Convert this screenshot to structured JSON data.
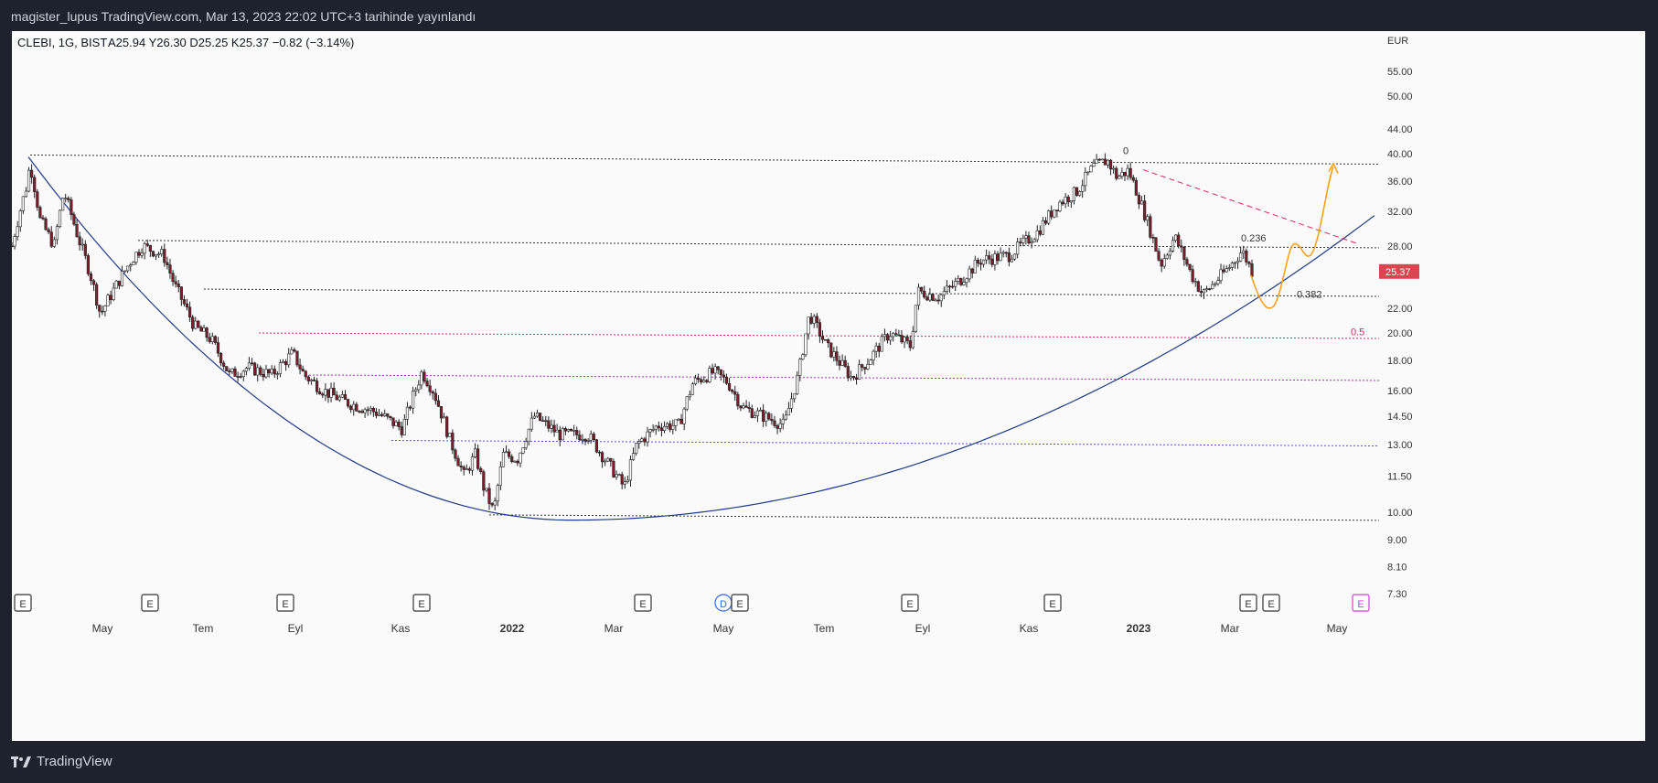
{
  "header": {
    "publish_text": "magister_lupus TradingView.com, Mar 13, 2023 22:02 UTC+3 tarihinde yayınlandı"
  },
  "legend": {
    "symbol_text": "CLEBI, 1G, BIST",
    "ohlc_text": "A25.94  Y26.30  D25.25  K25.37  −0.82 (−3.14%)"
  },
  "footer": {
    "brand": "TradingView"
  },
  "colors": {
    "bull": "#ffffff",
    "bear": "#7a1f2b",
    "wick": "#222222",
    "curve": "#1d3a8a",
    "price_badge": "#d9464f",
    "fib_red": "#e0245e",
    "fib_purple": "#b026c4",
    "fib_blue": "#5a4fcf",
    "arrow": "#f59e0b"
  },
  "chart_data": {
    "type": "candlestick",
    "currency": "EUR",
    "yscale": "log",
    "ylim": [
      7.3,
      60
    ],
    "last_price": "25.37",
    "y_ticks": [
      "55.00",
      "50.00",
      "44.00",
      "40.00",
      "36.00",
      "32.00",
      "28.00",
      "25.37",
      "22.00",
      "20.00",
      "18.00",
      "16.00",
      "14.50",
      "13.00",
      "11.50",
      "10.00",
      "9.00",
      "8.10",
      "7.30"
    ],
    "x_labels": [
      {
        "label": "May",
        "bold": false
      },
      {
        "label": "Tem",
        "bold": false
      },
      {
        "label": "Eyl",
        "bold": false
      },
      {
        "label": "Kas",
        "bold": false
      },
      {
        "label": "2022",
        "bold": true
      },
      {
        "label": "Mar",
        "bold": false
      },
      {
        "label": "May",
        "bold": false
      },
      {
        "label": "Tem",
        "bold": false
      },
      {
        "label": "Eyl",
        "bold": false
      },
      {
        "label": "Kas",
        "bold": false
      },
      {
        "label": "2023",
        "bold": true
      },
      {
        "label": "Mar",
        "bold": false
      },
      {
        "label": "May",
        "bold": false
      }
    ],
    "earnings_markers": [
      "E",
      "E",
      "E",
      "E",
      "E",
      "D",
      "E",
      "E",
      "E",
      "E",
      "E",
      "E"
    ],
    "fib_levels": [
      {
        "label": "0",
        "value": 39.1
      },
      {
        "label": "0.236",
        "value": 27.9
      },
      {
        "label": "0.382",
        "value": 22.6
      },
      {
        "label": "0.5",
        "value": 19.4
      }
    ],
    "horizontal_levels": [
      39.8,
      28.6,
      23.7,
      20.0,
      17.0,
      13.2,
      9.9
    ],
    "price_path": [
      {
        "t": 0.0,
        "p": 28.0
      },
      {
        "t": 0.01,
        "p": 35.0
      },
      {
        "t": 0.013,
        "p": 38.5
      },
      {
        "t": 0.02,
        "p": 31.0
      },
      {
        "t": 0.03,
        "p": 28.0
      },
      {
        "t": 0.037,
        "p": 34.5
      },
      {
        "t": 0.047,
        "p": 29.0
      },
      {
        "t": 0.056,
        "p": 25.0
      },
      {
        "t": 0.063,
        "p": 21.5
      },
      {
        "t": 0.072,
        "p": 23.5
      },
      {
        "t": 0.085,
        "p": 26.5
      },
      {
        "t": 0.093,
        "p": 28.0
      },
      {
        "t": 0.108,
        "p": 27.0
      },
      {
        "t": 0.116,
        "p": 24.0
      },
      {
        "t": 0.13,
        "p": 20.5
      },
      {
        "t": 0.142,
        "p": 19.5
      },
      {
        "t": 0.155,
        "p": 17.0
      },
      {
        "t": 0.168,
        "p": 17.5
      },
      {
        "t": 0.185,
        "p": 17.0
      },
      {
        "t": 0.2,
        "p": 18.5
      },
      {
        "t": 0.208,
        "p": 17.0
      },
      {
        "t": 0.222,
        "p": 16.0
      },
      {
        "t": 0.238,
        "p": 15.3
      },
      {
        "t": 0.26,
        "p": 14.7
      },
      {
        "t": 0.278,
        "p": 13.8
      },
      {
        "t": 0.292,
        "p": 17.2
      },
      {
        "t": 0.3,
        "p": 16.0
      },
      {
        "t": 0.312,
        "p": 13.2
      },
      {
        "t": 0.322,
        "p": 11.5
      },
      {
        "t": 0.33,
        "p": 12.5
      },
      {
        "t": 0.336,
        "p": 11.0
      },
      {
        "t": 0.343,
        "p": 10.0
      },
      {
        "t": 0.35,
        "p": 12.5
      },
      {
        "t": 0.36,
        "p": 12.3
      },
      {
        "t": 0.372,
        "p": 14.5
      },
      {
        "t": 0.39,
        "p": 13.5
      },
      {
        "t": 0.41,
        "p": 13.5
      },
      {
        "t": 0.42,
        "p": 12.5
      },
      {
        "t": 0.436,
        "p": 11.0
      },
      {
        "t": 0.445,
        "p": 13.0
      },
      {
        "t": 0.46,
        "p": 14.0
      },
      {
        "t": 0.475,
        "p": 14.0
      },
      {
        "t": 0.485,
        "p": 16.5
      },
      {
        "t": 0.5,
        "p": 17.2
      },
      {
        "t": 0.51,
        "p": 16.5
      },
      {
        "t": 0.52,
        "p": 15.0
      },
      {
        "t": 0.535,
        "p": 14.5
      },
      {
        "t": 0.55,
        "p": 14.0
      },
      {
        "t": 0.56,
        "p": 17.0
      },
      {
        "t": 0.568,
        "p": 21.5
      },
      {
        "t": 0.58,
        "p": 19.0
      },
      {
        "t": 0.598,
        "p": 16.8
      },
      {
        "t": 0.61,
        "p": 18.0
      },
      {
        "t": 0.625,
        "p": 20.0
      },
      {
        "t": 0.64,
        "p": 19.0
      },
      {
        "t": 0.645,
        "p": 23.5
      },
      {
        "t": 0.66,
        "p": 23.0
      },
      {
        "t": 0.675,
        "p": 24.5
      },
      {
        "t": 0.69,
        "p": 26.5
      },
      {
        "t": 0.71,
        "p": 27.0
      },
      {
        "t": 0.73,
        "p": 29.5
      },
      {
        "t": 0.745,
        "p": 33.0
      },
      {
        "t": 0.758,
        "p": 34.5
      },
      {
        "t": 0.77,
        "p": 38.0
      },
      {
        "t": 0.78,
        "p": 39.0
      },
      {
        "t": 0.787,
        "p": 36.5
      },
      {
        "t": 0.795,
        "p": 37.5
      },
      {
        "t": 0.808,
        "p": 31.0
      },
      {
        "t": 0.818,
        "p": 26.0
      },
      {
        "t": 0.828,
        "p": 29.0
      },
      {
        "t": 0.84,
        "p": 25.0
      },
      {
        "t": 0.848,
        "p": 23.2
      },
      {
        "t": 0.858,
        "p": 24.5
      },
      {
        "t": 0.868,
        "p": 26.0
      },
      {
        "t": 0.876,
        "p": 27.5
      },
      {
        "t": 0.883,
        "p": 25.4
      }
    ]
  }
}
